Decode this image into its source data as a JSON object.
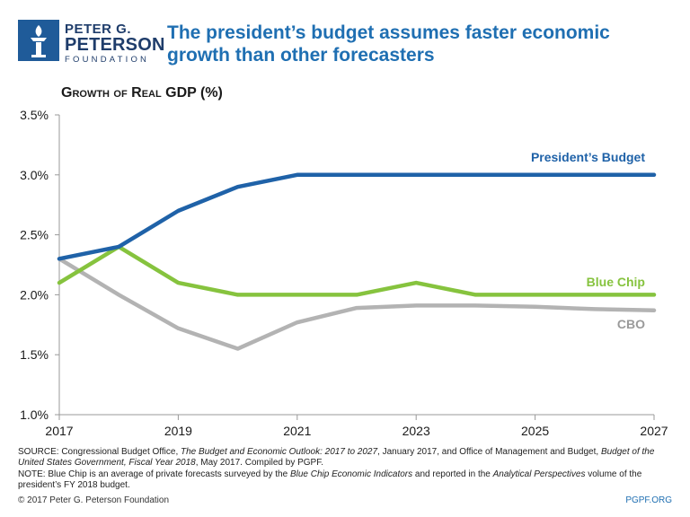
{
  "logo": {
    "line1": "PETER G.",
    "line2": "PETERSON",
    "line3": "FOUNDATION"
  },
  "headline": "The president’s budget assumes faster economic growth than other forecasters",
  "chart_data": {
    "type": "line",
    "ylabel": "Growth of Real GDP (%)",
    "xlabel": "",
    "x": [
      2017,
      2018,
      2019,
      2020,
      2021,
      2022,
      2023,
      2024,
      2025,
      2026,
      2027
    ],
    "xticks": [
      "2017",
      "2019",
      "2021",
      "2023",
      "2025",
      "2027"
    ],
    "yticks": [
      "1.0%",
      "1.5%",
      "2.0%",
      "2.5%",
      "3.0%",
      "3.5%"
    ],
    "ylim": [
      1.0,
      3.5
    ],
    "series": [
      {
        "name": "CBO",
        "color": "#b3b3b3",
        "values": [
          2.3,
          2.0,
          1.72,
          1.55,
          1.77,
          1.89,
          1.91,
          1.91,
          1.9,
          1.88,
          1.87
        ]
      },
      {
        "name": "Blue Chip",
        "color": "#86c33e",
        "values": [
          2.1,
          2.4,
          2.1,
          2.0,
          2.0,
          2.0,
          2.1,
          2.0,
          2.0,
          2.0,
          2.0
        ]
      },
      {
        "name": "President’s Budget",
        "color": "#1f62a8",
        "values": [
          2.3,
          2.4,
          2.7,
          2.9,
          3.0,
          3.0,
          3.0,
          3.0,
          3.0,
          3.0,
          3.0
        ]
      }
    ]
  },
  "notes": {
    "source_prefix": "SOURCE: Congressional Budget Office, ",
    "source_title1": "The Budget and Economic Outlook: 2017 to 2027",
    "source_mid": ", January 2017, and Office of Management and Budget, ",
    "source_title2": "Budget of the United States Government, Fiscal Year 2018",
    "source_suffix": ", May 2017. Compiled by PGPF.",
    "note_prefix": "NOTE: Blue Chip is an average of private forecasts surveyed by the ",
    "note_title1": "Blue Chip Economic Indicators",
    "note_mid": " and reported in the ",
    "note_title2": "Analytical Perspectives",
    "note_suffix": " volume of the president’s FY 2018 budget."
  },
  "footer": {
    "copyright": "© 2017 Peter G. Peterson Foundation",
    "site": "PGPF.ORG"
  }
}
